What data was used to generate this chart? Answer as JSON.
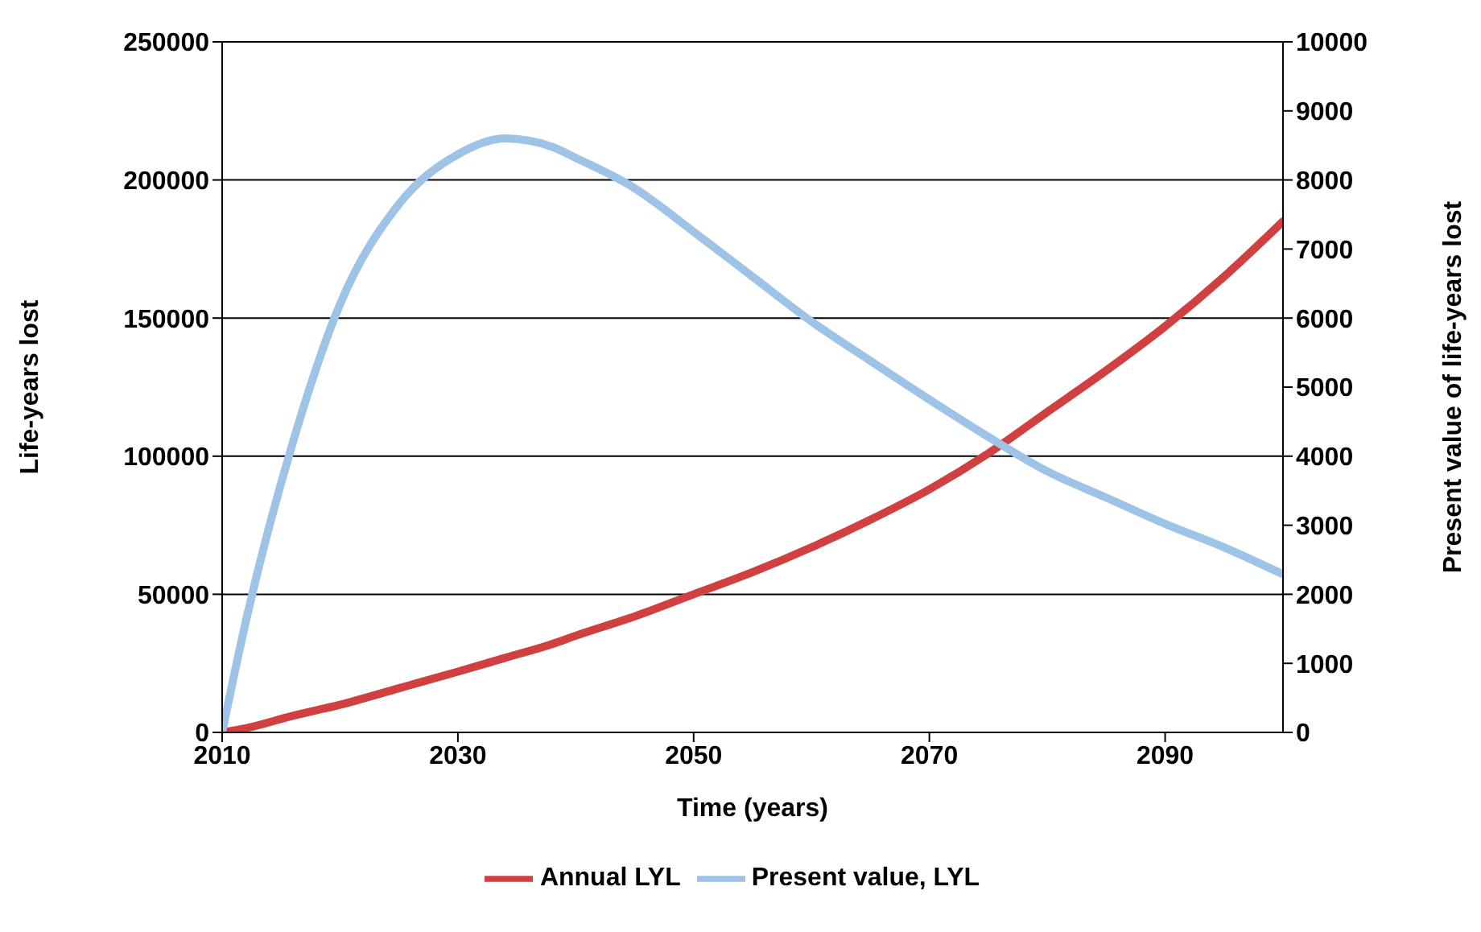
{
  "chart_data": {
    "type": "line",
    "xlabel": "Time (years)",
    "ylabel": "Life-years lost",
    "y2label": "Present value of life-years lost",
    "x": [
      2010,
      2012,
      2016,
      2020,
      2025,
      2030,
      2034,
      2038,
      2040,
      2045,
      2050,
      2055,
      2060,
      2065,
      2070,
      2075,
      2080,
      2085,
      2090,
      2095,
      2100
    ],
    "series": [
      {
        "name": "Annual LYL",
        "color": "#d04040",
        "values": [
          0,
          1500,
          6000,
          10000,
          16000,
          22000,
          27000,
          32000,
          35000,
          42000,
          50000,
          58000,
          67000,
          77000,
          88000,
          101000,
          116000,
          131000,
          147000,
          165000,
          185000
        ]
      },
      {
        "name": "Present value, LYL",
        "color": "#9dc3e6",
        "axis": "y2",
        "values": [
          0,
          1600,
          4200,
          6200,
          7650,
          8370,
          8600,
          8480,
          8320,
          7880,
          7250,
          6600,
          5950,
          5380,
          4820,
          4280,
          3780,
          3400,
          3020,
          2680,
          2290
        ]
      }
    ],
    "xlim": [
      2010,
      2100
    ],
    "xticks": [
      2010,
      2030,
      2050,
      2070,
      2090
    ],
    "ylim": [
      0,
      250000
    ],
    "yticks": [
      0,
      50000,
      100000,
      150000,
      200000,
      250000
    ],
    "y2lim": [
      0,
      10000
    ],
    "y2ticks": [
      0,
      1000,
      2000,
      3000,
      4000,
      5000,
      6000,
      7000,
      8000,
      9000,
      10000
    ],
    "grid": "y",
    "legend": "bottom",
    "marker": "none",
    "line_style": "solid"
  }
}
